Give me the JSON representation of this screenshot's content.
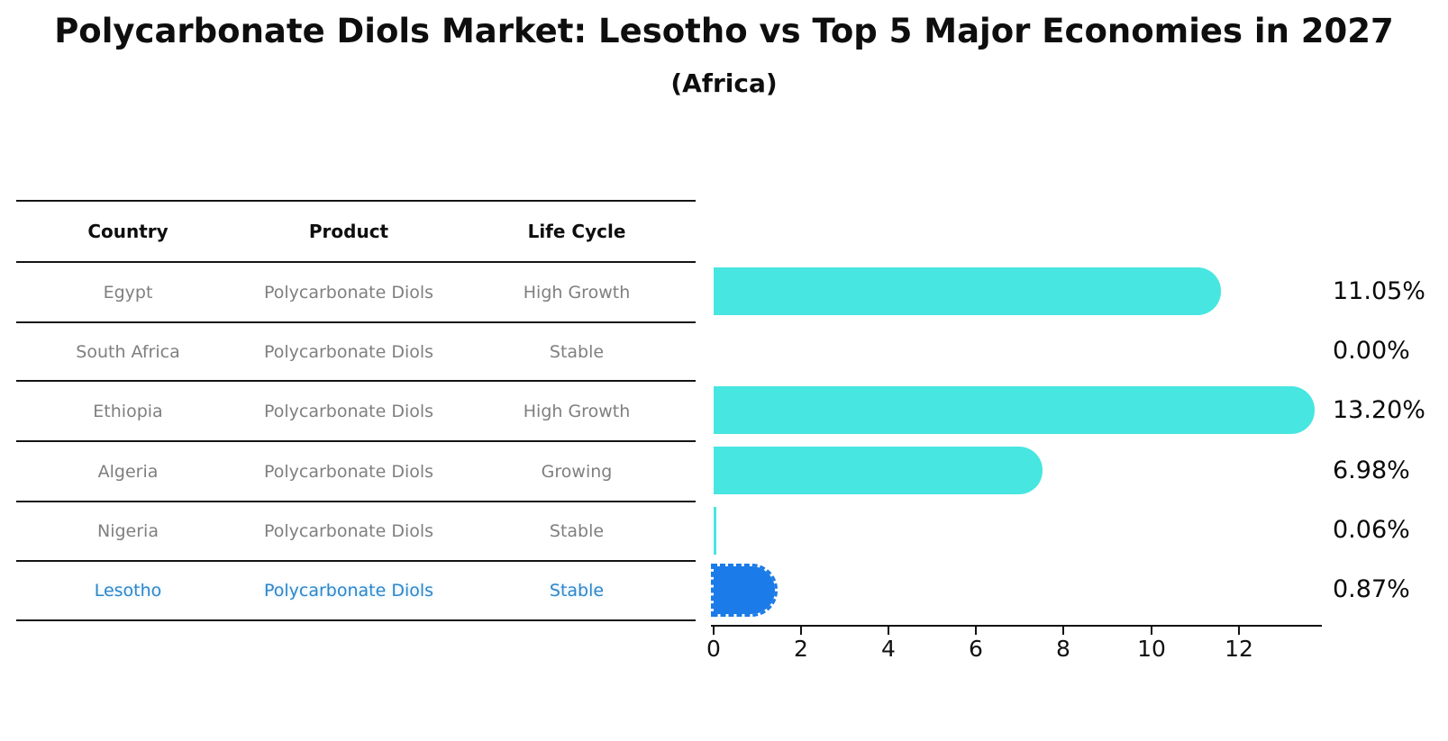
{
  "title": "Polycarbonate Diols Market: Lesotho vs Top 5 Major Economies in 2027",
  "subtitle": "(Africa)",
  "table": {
    "headers": [
      "Country",
      "Product",
      "Life Cycle"
    ],
    "rows": [
      {
        "country": "Egypt",
        "product": "Polycarbonate Diols",
        "life_cycle": "High Growth",
        "highlight": false
      },
      {
        "country": "South Africa",
        "product": "Polycarbonate Diols",
        "life_cycle": "Stable",
        "highlight": false
      },
      {
        "country": "Ethiopia",
        "product": "Polycarbonate Diols",
        "life_cycle": "High Growth",
        "highlight": false
      },
      {
        "country": "Algeria",
        "product": "Polycarbonate Diols",
        "life_cycle": "Growing",
        "highlight": false
      },
      {
        "country": "Nigeria",
        "product": "Polycarbonate Diols",
        "life_cycle": "Stable",
        "highlight": false
      },
      {
        "country": "Lesotho",
        "product": "Polycarbonate Diols",
        "life_cycle": "Stable",
        "highlight": true
      }
    ]
  },
  "chart_data": {
    "type": "bar",
    "orientation": "horizontal",
    "title": "Polycarbonate Diols Market: Lesotho vs Top 5 Major Economies in 2027 (Africa)",
    "categories": [
      "Egypt",
      "South Africa",
      "Ethiopia",
      "Algeria",
      "Nigeria",
      "Lesotho"
    ],
    "values": [
      11.05,
      0.0,
      13.2,
      6.98,
      0.06,
      0.87
    ],
    "value_labels": [
      "11.05%",
      "0.00%",
      "13.20%",
      "6.98%",
      "0.06%",
      "0.87%"
    ],
    "highlight_index": 5,
    "xlim": [
      0,
      13.9
    ],
    "xticks": [
      0,
      2,
      4,
      6,
      8,
      10,
      12
    ],
    "grid": false,
    "legend": false
  },
  "colors": {
    "bar": "#47E6E0",
    "highlight_bar": "#1B7BE8",
    "highlight_text": "#2E86C8",
    "cell_text": "#7f7f7f",
    "line": "#141414"
  }
}
